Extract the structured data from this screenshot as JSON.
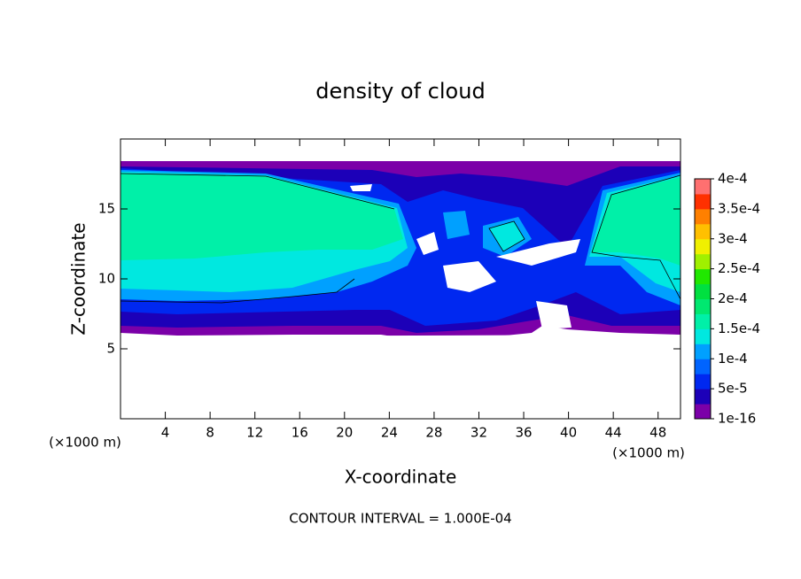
{
  "chart_data": {
    "type": "contour",
    "title": "density of cloud",
    "xlabel": "X-coordinate",
    "ylabel": "Z-coordinate",
    "x_unit_label": "(×1000 m)",
    "xlim": [
      0,
      50
    ],
    "ylim": [
      0,
      20
    ],
    "xticks": [
      4,
      8,
      12,
      16,
      20,
      24,
      28,
      32,
      36,
      40,
      44,
      48
    ],
    "yticks": [
      5,
      10,
      15
    ],
    "colorbar": {
      "clim": [
        1e-16,
        0.0004
      ],
      "ticks": [
        {
          "value": 1e-16,
          "label": "1e-16"
        },
        {
          "value": 5e-05,
          "label": "5e-5"
        },
        {
          "value": 0.0001,
          "label": "1e-4"
        },
        {
          "value": 0.00015,
          "label": "1.5e-4"
        },
        {
          "value": 0.0002,
          "label": "2e-4"
        },
        {
          "value": 0.00025,
          "label": "2.5e-4"
        },
        {
          "value": 0.0003,
          "label": "3e-4"
        },
        {
          "value": 0.00035,
          "label": "3.5e-4"
        },
        {
          "value": 0.0004,
          "label": "4e-4"
        }
      ],
      "colors": [
        "#7b00a8",
        "#1c00b8",
        "#0028f0",
        "#0064ff",
        "#00a0ff",
        "#00e8e0",
        "#00f0a8",
        "#00e870",
        "#00e040",
        "#20e800",
        "#a0f000",
        "#f0f000",
        "#ffc000",
        "#ff8000",
        "#ff3000",
        "#ff7070"
      ]
    },
    "footer": "CONTOUR INTERVAL = 1.000E-04"
  }
}
